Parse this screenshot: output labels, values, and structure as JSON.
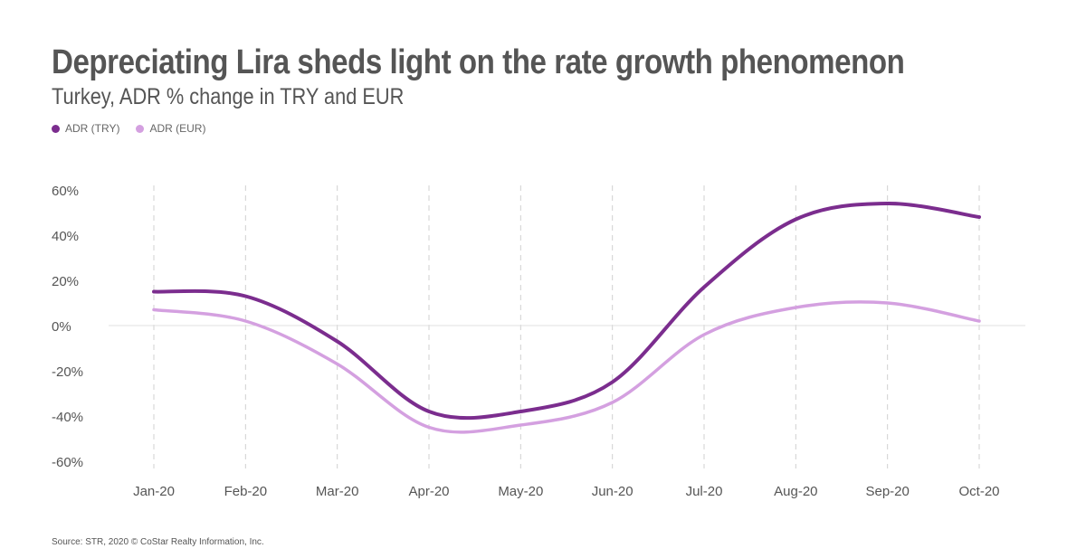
{
  "chart_data": {
    "type": "line",
    "title": "Depreciating Lira sheds light on the rate growth phenomenon",
    "subtitle": "Turkey, ADR % change in TRY and EUR",
    "categories": [
      "Jan-20",
      "Feb-20",
      "Mar-20",
      "Apr-20",
      "May-20",
      "Jun-20",
      "Jul-20",
      "Aug-20",
      "Sep-20",
      "Oct-20"
    ],
    "series": [
      {
        "name": "ADR (TRY)",
        "color": "#7b2d8e",
        "values": [
          15,
          13,
          -7,
          -38,
          -38,
          -25,
          17,
          47,
          54,
          48
        ]
      },
      {
        "name": "ADR (EUR)",
        "color": "#d4a0e0",
        "values": [
          7,
          2,
          -17,
          -45,
          -44,
          -34,
          -4,
          8,
          10,
          2
        ]
      }
    ],
    "ylim": [
      -60,
      60
    ],
    "yticks": [
      60,
      40,
      20,
      0,
      -20,
      -40,
      -60
    ],
    "ytick_labels": [
      "60%",
      "40%",
      "20%",
      "0%",
      "-20%",
      "-40%",
      "-60%"
    ],
    "xlabel": "",
    "ylabel": "",
    "grid": "vertical-dashed",
    "legend_position": "top-left"
  },
  "source": "Source: STR, 2020 © CoStar Realty Information, Inc."
}
